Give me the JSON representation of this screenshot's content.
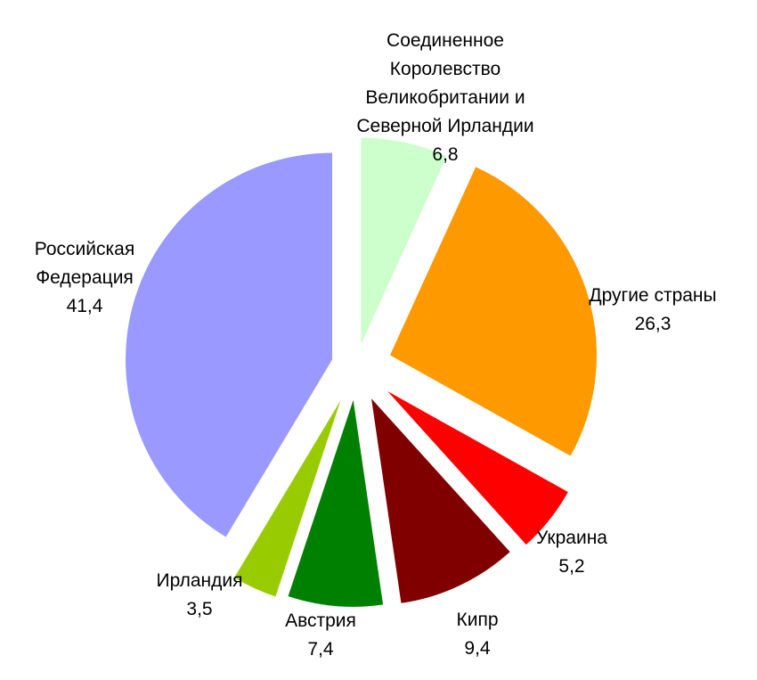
{
  "chart_data": {
    "type": "pie",
    "title": "",
    "slices": [
      {
        "label_lines": [
          "Соединенное",
          "Королевство",
          "Великобритании и",
          "Северной Ирландии"
        ],
        "value": 6.8,
        "value_text": "6,8",
        "color": "#CCFFCC"
      },
      {
        "label_lines": [
          "Другие страны"
        ],
        "value": 26.3,
        "value_text": "26,3",
        "color": "#FF9900"
      },
      {
        "label_lines": [
          "Украина"
        ],
        "value": 5.2,
        "value_text": "5,2",
        "color": "#FF0000"
      },
      {
        "label_lines": [
          "Кипр"
        ],
        "value": 9.4,
        "value_text": "9,4",
        "color": "#800000"
      },
      {
        "label_lines": [
          "Австрия"
        ],
        "value": 7.4,
        "value_text": "7,4",
        "color": "#008000"
      },
      {
        "label_lines": [
          "Ирландия"
        ],
        "value": 3.5,
        "value_text": "3,5",
        "color": "#99CC00"
      },
      {
        "label_lines": [
          "Российская",
          "Федерация"
        ],
        "value": 41.4,
        "value_text": "41,4",
        "color": "#9999FF"
      }
    ],
    "start_angle_deg": 0,
    "direction": "clockwise",
    "exploded": true,
    "legend": "none"
  }
}
